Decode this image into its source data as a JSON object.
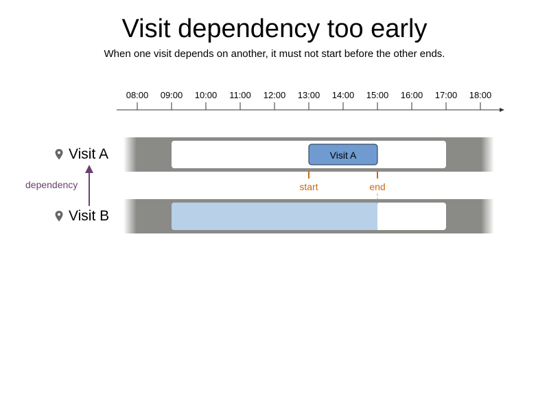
{
  "title": "Visit dependency too early",
  "subtitle": "When one visit depends on another, it must not start before the other ends.",
  "timeline": {
    "hours": [
      "08:00",
      "09:00",
      "10:00",
      "11:00",
      "12:00",
      "13:00",
      "14:00",
      "15:00",
      "16:00",
      "17:00",
      "18:00"
    ]
  },
  "visits": [
    {
      "label": "Visit A",
      "window_start": "09:00",
      "window_end": "17:00",
      "scheduled": {
        "label": "Visit A",
        "start": "13:00",
        "end": "15:00"
      }
    },
    {
      "label": "Visit B",
      "window_start": "09:00",
      "window_end": "17:00",
      "highlight_start": "09:00",
      "highlight_end": "15:00"
    }
  ],
  "dependency": {
    "label": "dependency"
  },
  "markers": {
    "start_label": "start",
    "end_label": "end"
  },
  "colors": {
    "band": "#8a8a87",
    "window": "#ffffff",
    "scheduled_fill": "#6f9bd1",
    "highlight_fill": "#b8d0e8",
    "marker": "#c86a12",
    "dependency": "#6b3f6f"
  }
}
